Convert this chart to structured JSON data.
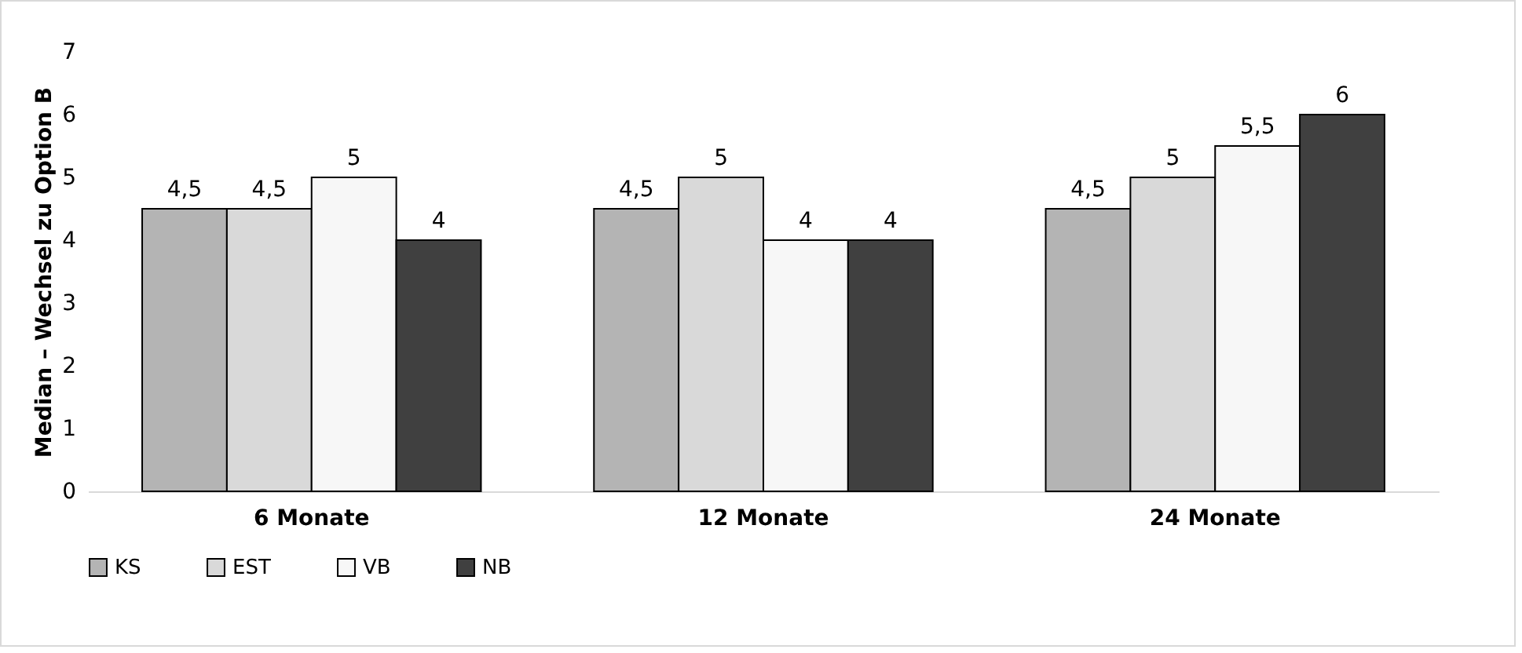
{
  "chart_data": {
    "type": "bar",
    "ylabel": "Median – Wechsel zu Option B",
    "categories": [
      "6 Monate",
      "12 Monate",
      "24 Monate"
    ],
    "series": [
      {
        "name": "KS",
        "color": "#b4b4b4",
        "values": [
          4.5,
          4.5,
          4.5
        ],
        "value_labels": [
          "4,5",
          "4,5",
          "4,5"
        ]
      },
      {
        "name": "EST",
        "color": "#d9d9d9",
        "values": [
          4.5,
          5,
          5
        ],
        "value_labels": [
          "4,5",
          "5",
          "5"
        ]
      },
      {
        "name": "VB",
        "color": "#f7f7f7",
        "values": [
          5,
          4,
          5.5
        ],
        "value_labels": [
          "5",
          "4",
          "5,5"
        ]
      },
      {
        "name": "NB",
        "color": "#404040",
        "values": [
          4,
          4,
          6
        ],
        "value_labels": [
          "4",
          "4",
          "6"
        ]
      }
    ],
    "ylim": [
      0,
      7
    ],
    "yticks": [
      0,
      1,
      2,
      3,
      4,
      5,
      6,
      7
    ],
    "grid": false,
    "legend": "bottom"
  }
}
